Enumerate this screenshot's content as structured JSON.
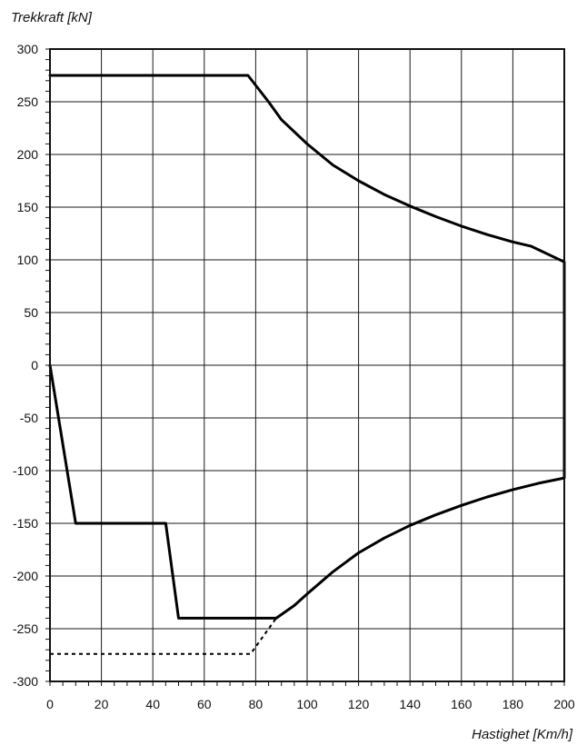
{
  "chart_data": {
    "type": "line",
    "title": "",
    "ylabel": "Trekkraft [kN]",
    "xlabel": "Hastighet [Km/h]",
    "xlim": [
      0,
      200
    ],
    "ylim": [
      -300,
      300
    ],
    "grid": true,
    "legend": "none",
    "x_ticks": [
      0,
      20,
      40,
      60,
      80,
      100,
      120,
      140,
      160,
      180,
      200
    ],
    "y_ticks": [
      300,
      250,
      200,
      150,
      100,
      50,
      0,
      -50,
      -100,
      -150,
      -200,
      -250,
      -300
    ],
    "series": [
      {
        "style": "solid",
        "points": [
          [
            0,
            275
          ],
          [
            77,
            275
          ],
          [
            85,
            250
          ],
          [
            90,
            233
          ],
          [
            100,
            210
          ],
          [
            110,
            190
          ],
          [
            120,
            175
          ],
          [
            130,
            162
          ],
          [
            140,
            151
          ],
          [
            150,
            141
          ],
          [
            160,
            132
          ],
          [
            170,
            124
          ],
          [
            180,
            117
          ],
          [
            187,
            113
          ],
          [
            200,
            98
          ],
          [
            200,
            -107
          ],
          [
            190,
            -112
          ],
          [
            180,
            -118
          ],
          [
            170,
            -125
          ],
          [
            160,
            -133
          ],
          [
            150,
            -142
          ],
          [
            140,
            -152
          ],
          [
            130,
            -164
          ],
          [
            120,
            -178
          ],
          [
            110,
            -196
          ],
          [
            100,
            -217
          ],
          [
            95,
            -228
          ],
          [
            88,
            -240
          ],
          [
            50,
            -240
          ],
          [
            45,
            -150
          ],
          [
            10,
            -150
          ],
          [
            0,
            0
          ]
        ]
      },
      {
        "style": "dashed",
        "points": [
          [
            0,
            -274
          ],
          [
            78,
            -274
          ],
          [
            88,
            -240
          ]
        ]
      }
    ]
  }
}
